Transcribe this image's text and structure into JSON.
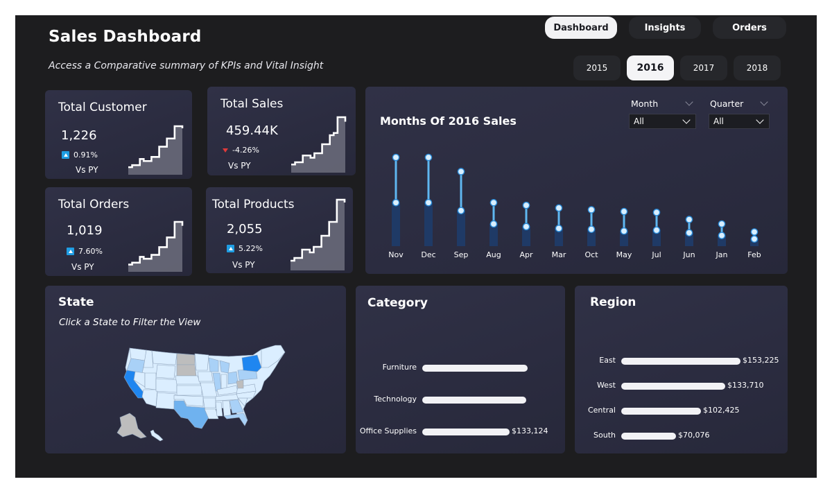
{
  "header": {
    "title": "Sales Dashboard",
    "subtitle": "Access a Comparative summary of KPIs and Vital Insight"
  },
  "nav": [
    {
      "label": "Dashboard",
      "active": true
    },
    {
      "label": "Insights",
      "active": false
    },
    {
      "label": "Orders",
      "active": false
    }
  ],
  "years": [
    {
      "label": "2015",
      "active": false
    },
    {
      "label": "2016",
      "active": true
    },
    {
      "label": "2017",
      "active": false
    },
    {
      "label": "2018",
      "active": false
    }
  ],
  "kpis": {
    "customers": {
      "label": "Total Customer",
      "value": "1,226",
      "delta": "0.91%",
      "trend": "up",
      "vs": "Vs PY",
      "spark": [
        3,
        4,
        4,
        7,
        6,
        6,
        8,
        8,
        13,
        13,
        17,
        17,
        23,
        23,
        22
      ]
    },
    "sales": {
      "label": "Total Sales",
      "value": "459.44K",
      "delta": "-4.26%",
      "trend": "down",
      "vs": "Vs PY",
      "spark": [
        3,
        4,
        4,
        7,
        7,
        6,
        8,
        8,
        12,
        12,
        16,
        17,
        24,
        24,
        22
      ]
    },
    "orders": {
      "label": "Total Orders",
      "value": "1,019",
      "delta": "7.60%",
      "trend": "up",
      "vs": "Vs PY",
      "spark": [
        3,
        4,
        4,
        7,
        6,
        6,
        8,
        8,
        12,
        12,
        17,
        17,
        25,
        25,
        23
      ]
    },
    "products": {
      "label": "Total Products",
      "value": "2,055",
      "delta": "5.22%",
      "trend": "up",
      "vs": "Vs PY",
      "spark": [
        3,
        4,
        4,
        7,
        7,
        6,
        8,
        8,
        12,
        12,
        17,
        17,
        25,
        25,
        24
      ]
    }
  },
  "months_card": {
    "title": "Months Of 2016 Sales",
    "filters": {
      "month": {
        "label": "Month",
        "value": "All"
      },
      "quarter": {
        "label": "Quarter",
        "value": "All"
      }
    }
  },
  "chart_data": {
    "type": "bar",
    "categories": [
      "Nov",
      "Dec",
      "Sep",
      "Aug",
      "Apr",
      "Mar",
      "Oct",
      "May",
      "Jul",
      "Jun",
      "Jan",
      "Feb"
    ],
    "series": [
      {
        "values": [
          100,
          100,
          84,
          49,
          46,
          43,
          41,
          39,
          38,
          30,
          25,
          16
        ]
      },
      {
        "values": [
          49,
          49,
          40,
          25,
          22,
          20,
          19,
          17,
          18,
          15,
          12,
          8
        ]
      }
    ],
    "colors": {
      "bar": "#1f3a66",
      "stem": "#5fb7f0",
      "dot": "#d9efff",
      "dot_stroke": "#2a8ad6"
    }
  },
  "state_card": {
    "title": "State",
    "subtitle": "Click a State to Filter the View",
    "colors": {
      "light": "#dbeeff",
      "mid": "#a9d1f7",
      "strong": "#6fb2ef",
      "highlight": "#1f86f0",
      "none": "#bdbdbd",
      "border": "#8fa3bb"
    }
  },
  "category_card": {
    "title": "Category",
    "bars": [
      {
        "label": "Furniture",
        "value": 160000,
        "display": ""
      },
      {
        "label": "Technology",
        "value": 158000,
        "display": ""
      },
      {
        "label": "Office Supplies",
        "value": 133124,
        "display": "$133,124"
      }
    ],
    "max": 175000
  },
  "region_card": {
    "title": "Region",
    "bars": [
      {
        "label": "East",
        "value": 153225,
        "display": "$153,225"
      },
      {
        "label": "West",
        "value": 133710,
        "display": "$133,710"
      },
      {
        "label": "Central",
        "value": 102425,
        "display": "$102,425"
      },
      {
        "label": "South",
        "value": 70076,
        "display": "$70,076"
      }
    ],
    "max": 153225
  }
}
